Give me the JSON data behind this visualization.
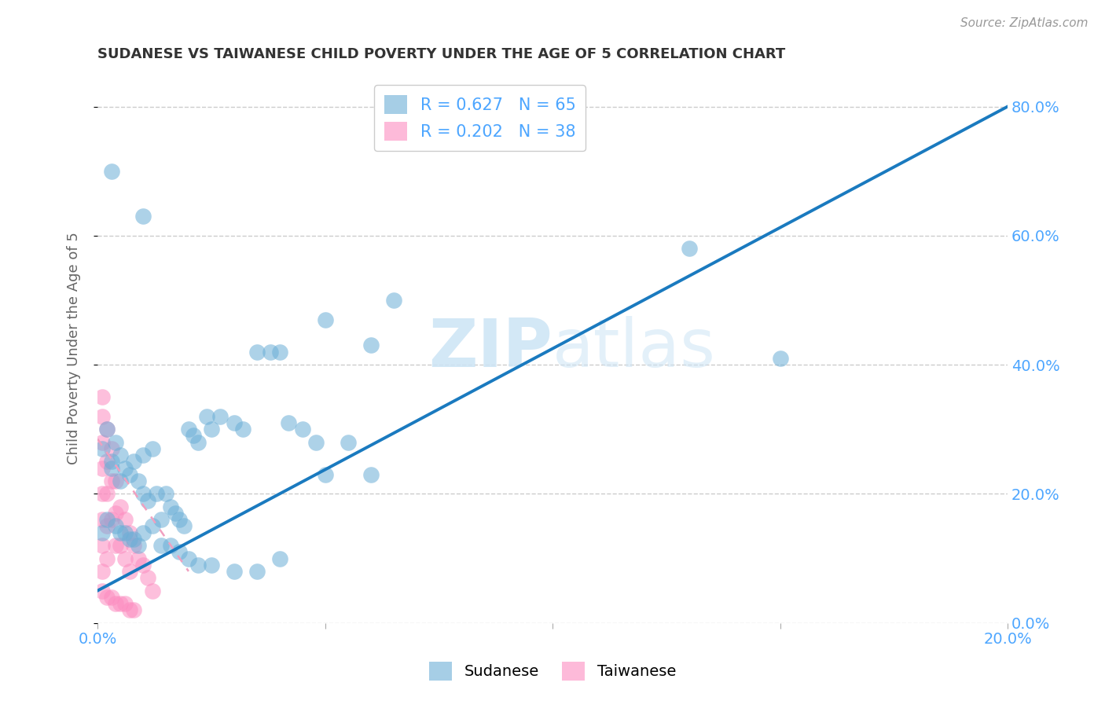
{
  "title": "SUDANESE VS TAIWANESE CHILD POVERTY UNDER THE AGE OF 5 CORRELATION CHART",
  "source": "Source: ZipAtlas.com",
  "ylabel": "Child Poverty Under the Age of 5",
  "xlim": [
    0.0,
    0.2
  ],
  "ylim": [
    0.0,
    0.85
  ],
  "xticks": [
    0.0,
    0.05,
    0.1,
    0.15,
    0.2
  ],
  "yticks": [
    0.0,
    0.2,
    0.4,
    0.6,
    0.8
  ],
  "sudanese_color": "#6baed6",
  "taiwanese_color": "#fc8cc0",
  "sudanese_R": 0.627,
  "sudanese_N": 65,
  "taiwanese_R": 0.202,
  "taiwanese_N": 38,
  "sudanese_line_color": "#1a7abf",
  "taiwanese_line_color": "#f0a0c0",
  "sudanese_x": [
    0.001,
    0.002,
    0.003,
    0.003,
    0.004,
    0.005,
    0.005,
    0.006,
    0.007,
    0.008,
    0.009,
    0.01,
    0.01,
    0.011,
    0.012,
    0.013,
    0.014,
    0.015,
    0.016,
    0.017,
    0.018,
    0.019,
    0.02,
    0.021,
    0.022,
    0.024,
    0.025,
    0.027,
    0.03,
    0.032,
    0.035,
    0.038,
    0.04,
    0.042,
    0.045,
    0.048,
    0.05,
    0.055,
    0.06,
    0.065,
    0.001,
    0.002,
    0.004,
    0.005,
    0.006,
    0.007,
    0.008,
    0.009,
    0.01,
    0.012,
    0.014,
    0.016,
    0.018,
    0.02,
    0.022,
    0.025,
    0.03,
    0.035,
    0.04,
    0.05,
    0.06,
    0.13,
    0.15,
    0.003,
    0.01
  ],
  "sudanese_y": [
    0.27,
    0.3,
    0.25,
    0.24,
    0.28,
    0.26,
    0.22,
    0.24,
    0.23,
    0.25,
    0.22,
    0.26,
    0.2,
    0.19,
    0.27,
    0.2,
    0.16,
    0.2,
    0.18,
    0.17,
    0.16,
    0.15,
    0.3,
    0.29,
    0.28,
    0.32,
    0.3,
    0.32,
    0.31,
    0.3,
    0.42,
    0.42,
    0.42,
    0.31,
    0.3,
    0.28,
    0.47,
    0.28,
    0.43,
    0.5,
    0.14,
    0.16,
    0.15,
    0.14,
    0.14,
    0.13,
    0.13,
    0.12,
    0.14,
    0.15,
    0.12,
    0.12,
    0.11,
    0.1,
    0.09,
    0.09,
    0.08,
    0.08,
    0.1,
    0.23,
    0.23,
    0.58,
    0.41,
    0.7,
    0.63
  ],
  "taiwanese_x": [
    0.001,
    0.001,
    0.001,
    0.001,
    0.001,
    0.001,
    0.001,
    0.001,
    0.002,
    0.002,
    0.002,
    0.002,
    0.002,
    0.003,
    0.003,
    0.003,
    0.004,
    0.004,
    0.004,
    0.005,
    0.005,
    0.006,
    0.006,
    0.007,
    0.007,
    0.008,
    0.009,
    0.01,
    0.011,
    0.012,
    0.001,
    0.002,
    0.003,
    0.004,
    0.005,
    0.006,
    0.007,
    0.008
  ],
  "taiwanese_y": [
    0.35,
    0.32,
    0.28,
    0.24,
    0.2,
    0.16,
    0.12,
    0.08,
    0.3,
    0.25,
    0.2,
    0.15,
    0.1,
    0.27,
    0.22,
    0.16,
    0.22,
    0.17,
    0.12,
    0.18,
    0.12,
    0.16,
    0.1,
    0.14,
    0.08,
    0.12,
    0.1,
    0.09,
    0.07,
    0.05,
    0.05,
    0.04,
    0.04,
    0.03,
    0.03,
    0.03,
    0.02,
    0.02
  ],
  "watermark_zip": "ZIP",
  "watermark_atlas": "atlas",
  "grid_color": "#cccccc",
  "background_color": "#ffffff",
  "title_color": "#333333",
  "axis_label_color": "#666666",
  "tick_color": "#4da6ff"
}
